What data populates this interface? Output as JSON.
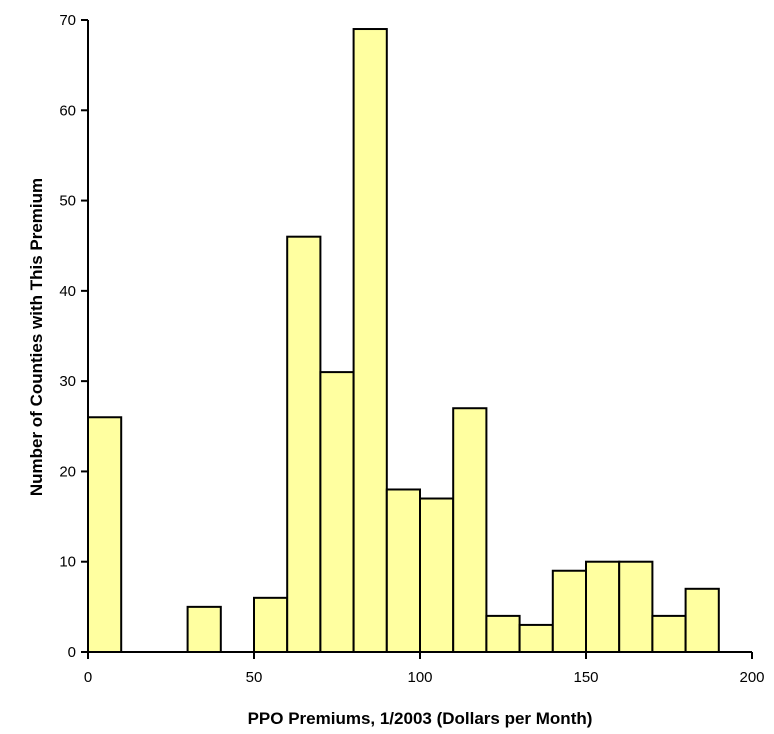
{
  "chart_data": {
    "type": "bar",
    "title": "",
    "xlabel": "PPO Premiums, 1/2003 (Dollars per Month)",
    "ylabel": "Number of Counties with This Premium",
    "xlim": [
      0,
      200
    ],
    "ylim": [
      0,
      70
    ],
    "xticks": [
      0,
      50,
      100,
      150,
      200
    ],
    "yticks": [
      0,
      10,
      20,
      30,
      40,
      50,
      60,
      70
    ],
    "bin_width": 10,
    "grid": false,
    "bar_color": "#ffffa0",
    "bar_edge_color": "#000000",
    "bins": [
      {
        "x0": 0,
        "x1": 10,
        "value": 26
      },
      {
        "x0": 10,
        "x1": 20,
        "value": 0
      },
      {
        "x0": 20,
        "x1": 30,
        "value": 0
      },
      {
        "x0": 30,
        "x1": 40,
        "value": 5
      },
      {
        "x0": 40,
        "x1": 50,
        "value": 0
      },
      {
        "x0": 50,
        "x1": 60,
        "value": 6
      },
      {
        "x0": 60,
        "x1": 70,
        "value": 46
      },
      {
        "x0": 70,
        "x1": 80,
        "value": 31
      },
      {
        "x0": 80,
        "x1": 90,
        "value": 69
      },
      {
        "x0": 90,
        "x1": 100,
        "value": 18
      },
      {
        "x0": 100,
        "x1": 110,
        "value": 17
      },
      {
        "x0": 110,
        "x1": 120,
        "value": 27
      },
      {
        "x0": 120,
        "x1": 130,
        "value": 4
      },
      {
        "x0": 130,
        "x1": 140,
        "value": 3
      },
      {
        "x0": 140,
        "x1": 150,
        "value": 9
      },
      {
        "x0": 150,
        "x1": 160,
        "value": 10
      },
      {
        "x0": 160,
        "x1": 170,
        "value": 10
      },
      {
        "x0": 170,
        "x1": 180,
        "value": 4
      },
      {
        "x0": 180,
        "x1": 190,
        "value": 7
      },
      {
        "x0": 190,
        "x1": 200,
        "value": 0
      }
    ]
  }
}
